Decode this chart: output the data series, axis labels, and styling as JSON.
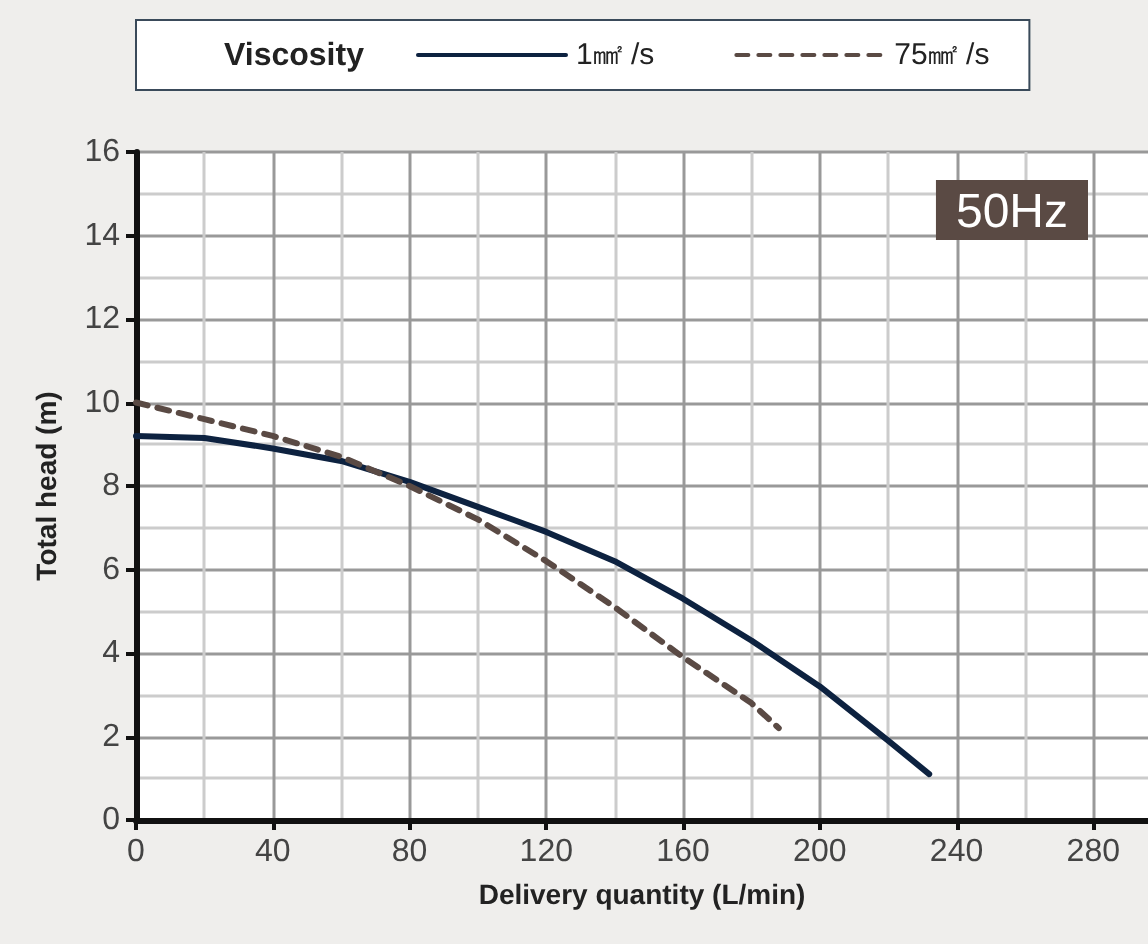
{
  "chart_data": {
    "type": "line",
    "xlabel": "Delivery quantity (L/min)",
    "ylabel": "Total head (m)",
    "legend_title": "Viscosity",
    "annotations": [
      "50Hz"
    ],
    "xlim": [
      0,
      296
    ],
    "xticks": [
      0,
      40,
      80,
      120,
      160,
      200,
      240,
      280
    ],
    "ylim": [
      0,
      16
    ],
    "yticks": [
      0,
      2,
      4,
      6,
      8,
      10,
      12,
      14,
      16
    ],
    "grid": true,
    "legend": "top",
    "marker": "none",
    "series": [
      {
        "name": "1㎟ /s",
        "color": "#0d2240",
        "line_style": "solid",
        "x": [
          0,
          20,
          40,
          60,
          80,
          100,
          120,
          140,
          160,
          180,
          200,
          220,
          232
        ],
        "values": [
          9.2,
          9.15,
          8.9,
          8.6,
          8.1,
          7.5,
          6.9,
          6.2,
          5.3,
          4.3,
          3.2,
          1.9,
          1.1
        ]
      },
      {
        "name": "75㎟ /s",
        "color": "#5a4a44",
        "line_style": "dashed",
        "x": [
          0,
          20,
          40,
          60,
          80,
          100,
          120,
          140,
          160,
          180,
          188
        ],
        "values": [
          10,
          9.6,
          9.2,
          8.7,
          8.0,
          7.2,
          6.2,
          5.1,
          3.9,
          2.8,
          2.2
        ]
      }
    ]
  }
}
